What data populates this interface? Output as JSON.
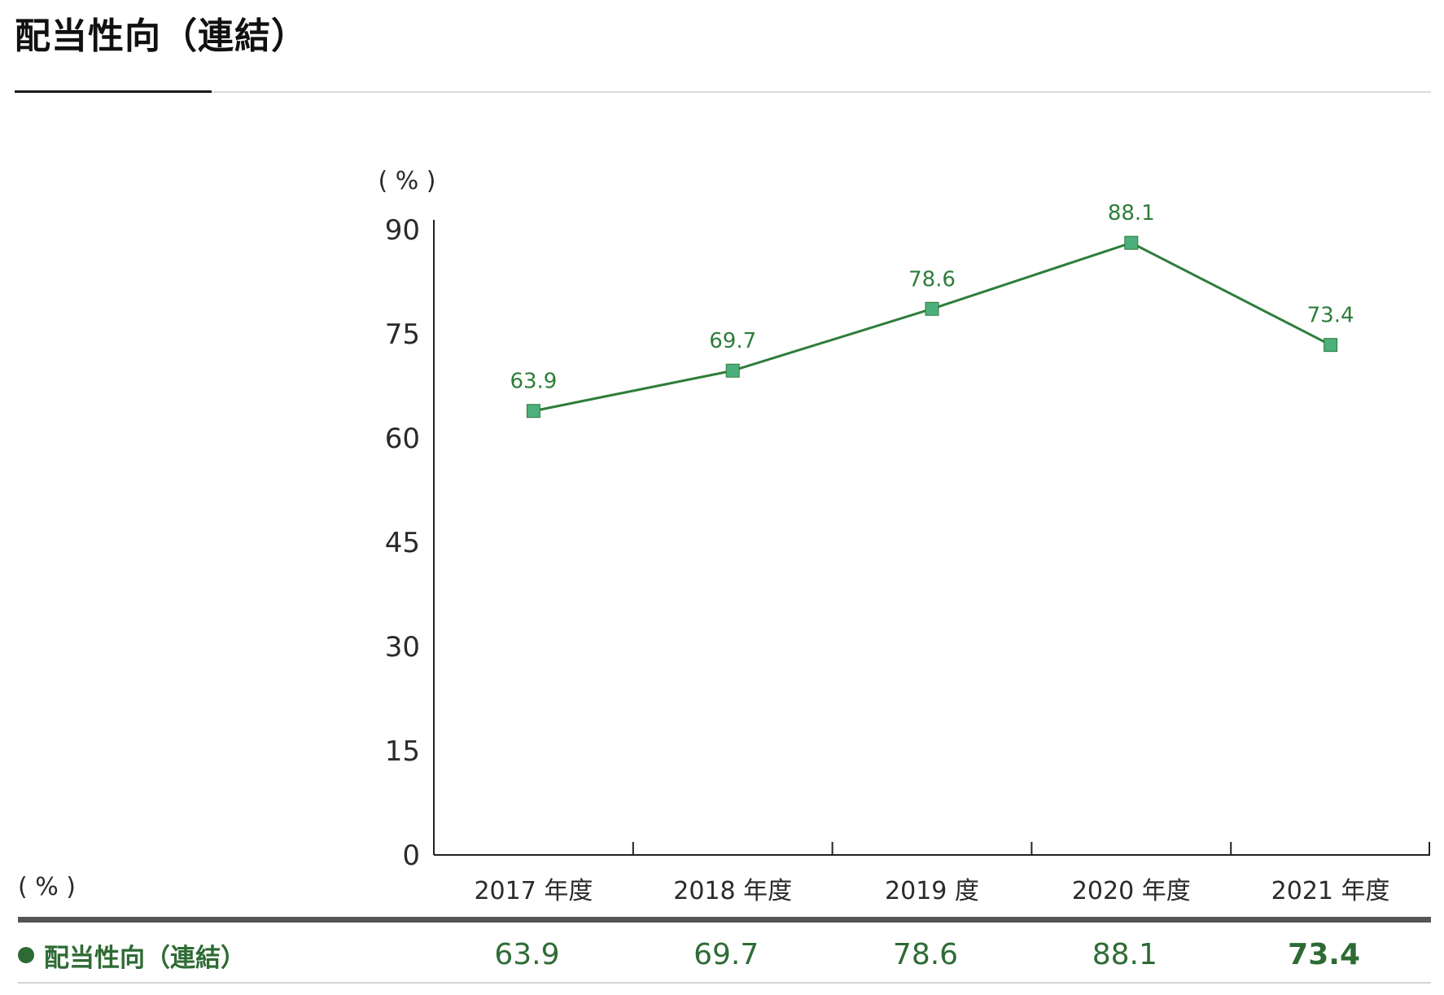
{
  "title": "配当性向（連結）",
  "colors": {
    "series": "#2e7d3a",
    "marker": "#4caf7d",
    "axis": "#222222",
    "table_rule": "#555555"
  },
  "chart_data": {
    "type": "line",
    "unit_label": "( % )",
    "categories": [
      "2017 年度",
      "2018 年度",
      "2019 度",
      "2020 年度",
      "2021 年度"
    ],
    "series": [
      {
        "name": "配当性向（連結）",
        "values": [
          63.9,
          69.7,
          78.6,
          88.1,
          73.4
        ],
        "labels": [
          "63.9",
          "69.7",
          "78.6",
          "88.1",
          "73.4"
        ]
      }
    ],
    "ylim": [
      0,
      90
    ],
    "yticks": [
      0,
      15,
      30,
      45,
      60,
      75,
      90
    ],
    "grid": false,
    "marker": "square"
  },
  "table": {
    "unit_label": "( % )",
    "row_label": "配当性向（連結）",
    "values": [
      "63.9",
      "69.7",
      "78.6",
      "88.1",
      "73.4"
    ],
    "emphasized_index": 4
  }
}
